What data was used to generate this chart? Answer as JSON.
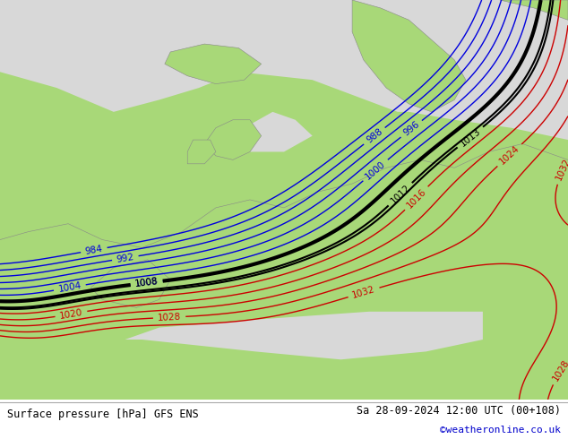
{
  "title_left": "Surface pressure [hPa] GFS ENS",
  "title_right": "Sa 28-09-2024 12:00 UTC (00+108)",
  "credit": "©weatheronline.co.uk",
  "land_color": "#a8d878",
  "sea_color": "#d8d8d8",
  "gray_land_color": "#c8c8c8",
  "blue_color": "#0000dd",
  "red_color": "#cc0000",
  "black_color": "#000000",
  "footer_text_color": "#000000",
  "credit_color": "#0000cc",
  "figsize": [
    6.34,
    4.9
  ],
  "dpi": 100
}
